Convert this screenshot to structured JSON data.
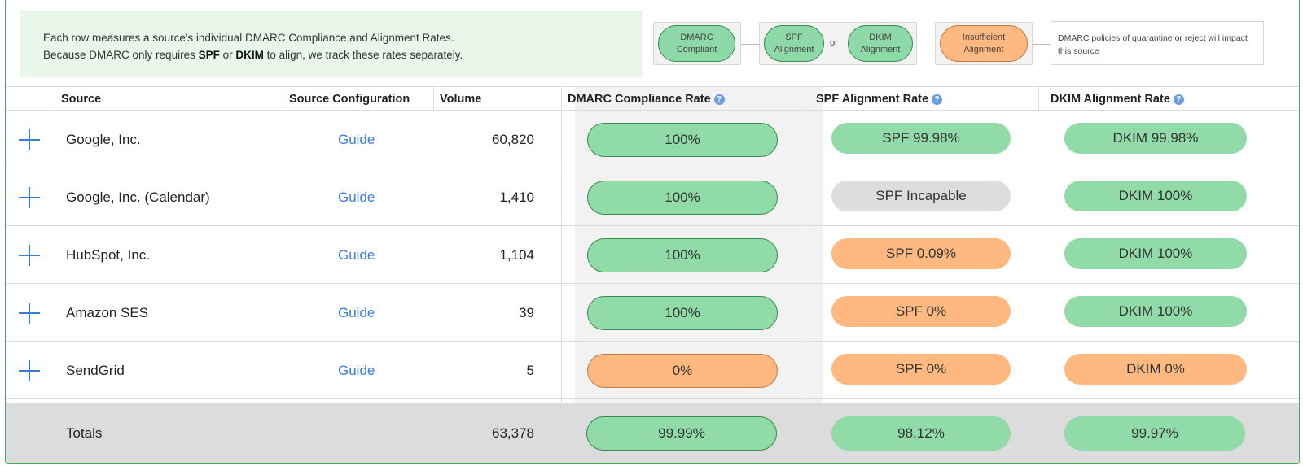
{
  "info": {
    "line1": "Each row measures a source's individual DMARC Compliance and Alignment Rates.",
    "line2_pre": "Because DMARC only requires ",
    "line2_spf": "SPF",
    "line2_or": " or ",
    "line2_dkim": "DKIM",
    "line2_post": " to align, we track these rates separately."
  },
  "legend": {
    "dmarc_compliant": [
      "DMARC",
      "Compliant"
    ],
    "spf_alignment": [
      "SPF",
      "Alignment"
    ],
    "or": "or",
    "dkim_alignment": [
      "DKIM",
      "Alignment"
    ],
    "insufficient_alignment": [
      "Insufficient",
      "Alignment"
    ],
    "note": "DMARC policies of quarantine or reject will impact this source"
  },
  "columns": {
    "source": "Source",
    "config": "Source Configuration",
    "volume": "Volume",
    "dmarc": "DMARC Compliance Rate",
    "spf": "SPF Alignment Rate",
    "dkim": "DKIM Alignment Rate",
    "help": "?"
  },
  "rows": [
    {
      "source": "Google, Inc.",
      "config": "Guide",
      "volume": "60,820",
      "dmarc": "100%",
      "dmarc_status": "green",
      "spf": "SPF 99.98%",
      "spf_status": "green",
      "dkim": "DKIM 99.98%",
      "dkim_status": "green"
    },
    {
      "source": "Google, Inc. (Calendar)",
      "config": "Guide",
      "volume": "1,410",
      "dmarc": "100%",
      "dmarc_status": "green",
      "spf": "SPF Incapable",
      "spf_status": "gray",
      "dkim": "DKIM 100%",
      "dkim_status": "green"
    },
    {
      "source": "HubSpot, Inc.",
      "config": "Guide",
      "volume": "1,104",
      "dmarc": "100%",
      "dmarc_status": "green",
      "spf": "SPF 0.09%",
      "spf_status": "orange",
      "dkim": "DKIM 100%",
      "dkim_status": "green"
    },
    {
      "source": "Amazon SES",
      "config": "Guide",
      "volume": "39",
      "dmarc": "100%",
      "dmarc_status": "green",
      "spf": "SPF 0%",
      "spf_status": "orange",
      "dkim": "DKIM 100%",
      "dkim_status": "green"
    },
    {
      "source": "SendGrid",
      "config": "Guide",
      "volume": "5",
      "dmarc": "0%",
      "dmarc_status": "orange",
      "spf": "SPF 0%",
      "spf_status": "orange",
      "dkim": "DKIM 0%",
      "dkim_status": "orange"
    }
  ],
  "totals": {
    "label": "Totals",
    "volume": "63,378",
    "dmarc": "99.99%",
    "spf": "98.12%",
    "dkim": "99.97%"
  },
  "colors": {
    "green": "#90dba8",
    "orange": "#ffb980",
    "gray": "#dddddd",
    "link": "#3a7be0",
    "border": "#4aa85a"
  },
  "icons": {
    "expand": "plus-icon",
    "help": "help-circle-icon"
  }
}
